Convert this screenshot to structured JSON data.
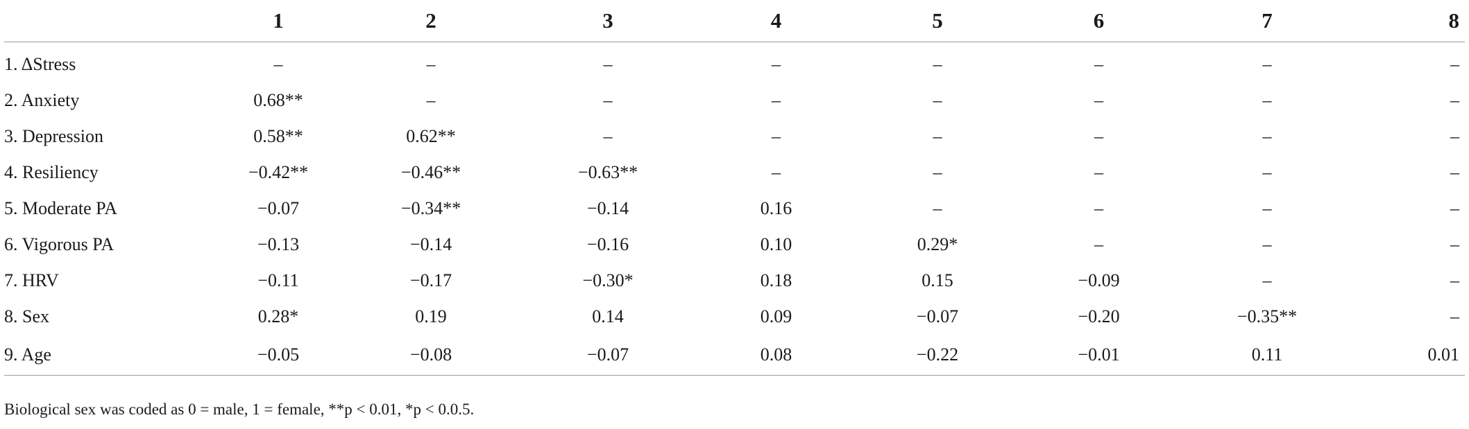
{
  "table": {
    "columns": [
      "1",
      "2",
      "3",
      "4",
      "5",
      "6",
      "7",
      "8"
    ],
    "rows": [
      {
        "label": "1. ΔStress",
        "cells": [
          "–",
          "–",
          "–",
          "–",
          "–",
          "–",
          "–",
          "–"
        ]
      },
      {
        "label": "2. Anxiety",
        "cells": [
          "0.68**",
          "–",
          "–",
          "–",
          "–",
          "–",
          "–",
          "–"
        ]
      },
      {
        "label": "3. Depression",
        "cells": [
          "0.58**",
          "0.62**",
          "–",
          "–",
          "–",
          "–",
          "–",
          "–"
        ]
      },
      {
        "label": "4. Resiliency",
        "cells": [
          "−0.42**",
          "−0.46**",
          "−0.63**",
          "–",
          "–",
          "–",
          "–",
          "–"
        ]
      },
      {
        "label": "5. Moderate PA",
        "cells": [
          "−0.07",
          "−0.34**",
          "−0.14",
          "0.16",
          "–",
          "–",
          "–",
          "–"
        ]
      },
      {
        "label": "6. Vigorous PA",
        "cells": [
          "−0.13",
          "−0.14",
          "−0.16",
          "0.10",
          "0.29*",
          "–",
          "–",
          "–"
        ]
      },
      {
        "label": "7. HRV",
        "cells": [
          "−0.11",
          "−0.17",
          "−0.30*",
          "0.18",
          "0.15",
          "−0.09",
          "–",
          "–"
        ]
      },
      {
        "label": "8. Sex",
        "cells": [
          "0.28*",
          "0.19",
          "0.14",
          "0.09",
          "−0.07",
          "−0.20",
          "−0.35**",
          "–"
        ]
      },
      {
        "label": "9. Age",
        "cells": [
          "−0.05",
          "−0.08",
          "−0.07",
          "0.08",
          "−0.22",
          "−0.01",
          "0.11",
          "0.01"
        ]
      }
    ]
  },
  "footnote": "Biological sex was coded as 0 = male, 1 = female, **p < 0.01, *p < 0.0.5."
}
